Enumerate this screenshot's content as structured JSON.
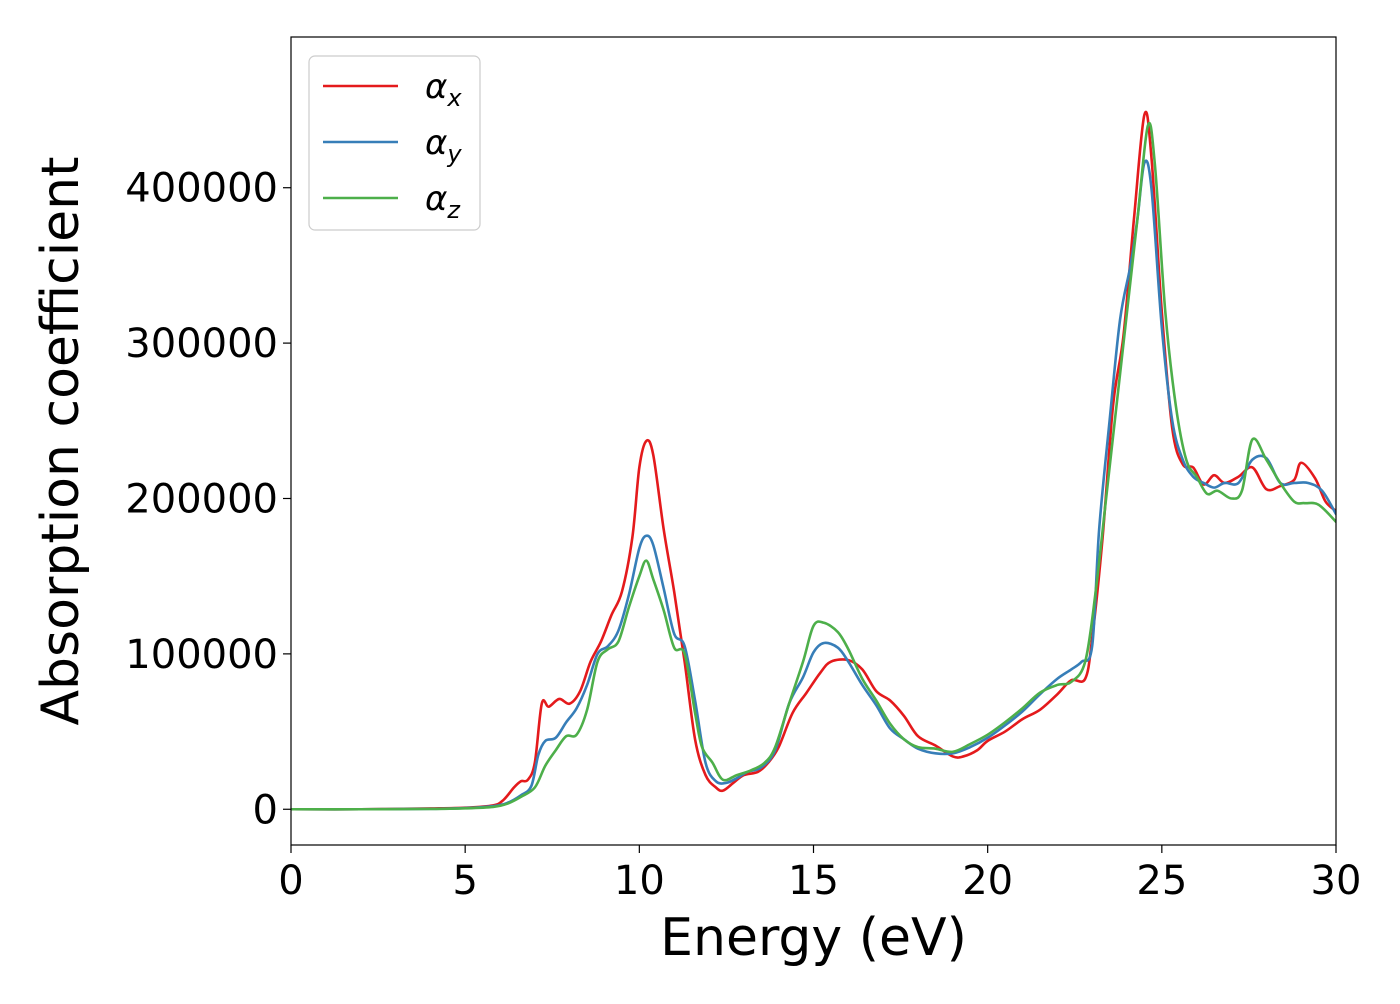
{
  "chart_data": {
    "type": "line",
    "xlabel": "Energy (eV)",
    "ylabel": "Absorption coefficient",
    "xlim": [
      0,
      30
    ],
    "ylim": [
      -23000,
      497000
    ],
    "xticks": [
      0,
      5,
      10,
      15,
      20,
      25,
      30
    ],
    "xtick_labels": [
      "0",
      "5",
      "10",
      "15",
      "20",
      "25",
      "30"
    ],
    "yticks": [
      0,
      100000,
      200000,
      300000,
      400000
    ],
    "ytick_labels": [
      "0",
      "100000",
      "200000",
      "300000",
      "400000"
    ],
    "grid": false,
    "legend_position": "top-left",
    "series": [
      {
        "name": "α",
        "subscript": "x",
        "color": "#e41a1c",
        "points": [
          [
            0,
            0
          ],
          [
            2,
            0
          ],
          [
            4,
            500
          ],
          [
            5,
            1000
          ],
          [
            5.8,
            2500
          ],
          [
            6.1,
            6000
          ],
          [
            6.4,
            14000
          ],
          [
            6.6,
            18000
          ],
          [
            6.8,
            19000
          ],
          [
            7.0,
            30000
          ],
          [
            7.2,
            68000
          ],
          [
            7.4,
            66000
          ],
          [
            7.7,
            71000
          ],
          [
            8.0,
            68000
          ],
          [
            8.3,
            76000
          ],
          [
            8.6,
            95000
          ],
          [
            8.9,
            108000
          ],
          [
            9.2,
            125000
          ],
          [
            9.5,
            140000
          ],
          [
            9.8,
            175000
          ],
          [
            10.0,
            220000
          ],
          [
            10.2,
            237000
          ],
          [
            10.4,
            228000
          ],
          [
            10.7,
            180000
          ],
          [
            11.0,
            140000
          ],
          [
            11.3,
            95000
          ],
          [
            11.6,
            45000
          ],
          [
            11.9,
            22000
          ],
          [
            12.2,
            14000
          ],
          [
            12.4,
            12000
          ],
          [
            12.7,
            17000
          ],
          [
            13.0,
            22000
          ],
          [
            13.4,
            24000
          ],
          [
            13.7,
            30000
          ],
          [
            14.0,
            40000
          ],
          [
            14.4,
            62000
          ],
          [
            14.8,
            75000
          ],
          [
            15.2,
            88000
          ],
          [
            15.5,
            95000
          ],
          [
            16.0,
            96000
          ],
          [
            16.4,
            90000
          ],
          [
            16.8,
            76000
          ],
          [
            17.2,
            70000
          ],
          [
            17.6,
            60000
          ],
          [
            18.0,
            47000
          ],
          [
            18.5,
            41000
          ],
          [
            19.0,
            34000
          ],
          [
            19.3,
            34000
          ],
          [
            19.7,
            38000
          ],
          [
            20.0,
            44000
          ],
          [
            20.5,
            50000
          ],
          [
            21.0,
            58000
          ],
          [
            21.5,
            64000
          ],
          [
            22.0,
            74000
          ],
          [
            22.4,
            83000
          ],
          [
            22.8,
            84000
          ],
          [
            23.0,
            110000
          ],
          [
            23.3,
            175000
          ],
          [
            23.6,
            260000
          ],
          [
            23.9,
            305000
          ],
          [
            24.2,
            380000
          ],
          [
            24.5,
            447000
          ],
          [
            24.7,
            420000
          ],
          [
            25.0,
            320000
          ],
          [
            25.3,
            245000
          ],
          [
            25.6,
            222000
          ],
          [
            25.9,
            220000
          ],
          [
            26.2,
            209000
          ],
          [
            26.5,
            215000
          ],
          [
            26.8,
            210000
          ],
          [
            27.2,
            214000
          ],
          [
            27.6,
            220000
          ],
          [
            28.0,
            206000
          ],
          [
            28.4,
            208000
          ],
          [
            28.8,
            212000
          ],
          [
            29.0,
            223000
          ],
          [
            29.4,
            213000
          ],
          [
            29.7,
            198000
          ],
          [
            30,
            192000
          ]
        ]
      },
      {
        "name": "α",
        "subscript": "y",
        "color": "#377eb8",
        "points": [
          [
            0,
            0
          ],
          [
            2,
            0
          ],
          [
            4,
            300
          ],
          [
            5,
            800
          ],
          [
            5.8,
            2000
          ],
          [
            6.2,
            4000
          ],
          [
            6.6,
            9000
          ],
          [
            6.9,
            15000
          ],
          [
            7.1,
            35000
          ],
          [
            7.3,
            44000
          ],
          [
            7.6,
            46000
          ],
          [
            7.9,
            56000
          ],
          [
            8.2,
            65000
          ],
          [
            8.5,
            80000
          ],
          [
            8.8,
            100000
          ],
          [
            9.1,
            105000
          ],
          [
            9.4,
            115000
          ],
          [
            9.7,
            138000
          ],
          [
            10.0,
            168000
          ],
          [
            10.2,
            176000
          ],
          [
            10.4,
            170000
          ],
          [
            10.7,
            142000
          ],
          [
            11.0,
            113000
          ],
          [
            11.3,
            105000
          ],
          [
            11.6,
            70000
          ],
          [
            11.9,
            30000
          ],
          [
            12.2,
            18000
          ],
          [
            12.5,
            17000
          ],
          [
            12.8,
            20000
          ],
          [
            13.1,
            24000
          ],
          [
            13.5,
            27000
          ],
          [
            13.9,
            38000
          ],
          [
            14.3,
            68000
          ],
          [
            14.7,
            85000
          ],
          [
            15.0,
            101000
          ],
          [
            15.3,
            107000
          ],
          [
            15.7,
            104000
          ],
          [
            16.0,
            95000
          ],
          [
            16.4,
            80000
          ],
          [
            16.8,
            67000
          ],
          [
            17.2,
            52000
          ],
          [
            17.6,
            45000
          ],
          [
            18.0,
            39000
          ],
          [
            18.5,
            36000
          ],
          [
            19.0,
            36000
          ],
          [
            19.5,
            40000
          ],
          [
            20.0,
            46000
          ],
          [
            20.5,
            54000
          ],
          [
            21.0,
            63000
          ],
          [
            21.5,
            74000
          ],
          [
            22.0,
            84000
          ],
          [
            22.4,
            90000
          ],
          [
            22.7,
            95000
          ],
          [
            23.0,
            105000
          ],
          [
            23.2,
            180000
          ],
          [
            23.5,
            250000
          ],
          [
            23.8,
            315000
          ],
          [
            24.1,
            350000
          ],
          [
            24.3,
            380000
          ],
          [
            24.5,
            416000
          ],
          [
            24.7,
            400000
          ],
          [
            25.0,
            310000
          ],
          [
            25.3,
            250000
          ],
          [
            25.6,
            225000
          ],
          [
            25.9,
            214000
          ],
          [
            26.2,
            210000
          ],
          [
            26.5,
            207000
          ],
          [
            26.8,
            210000
          ],
          [
            27.2,
            210000
          ],
          [
            27.6,
            225000
          ],
          [
            28.0,
            226000
          ],
          [
            28.4,
            210000
          ],
          [
            28.8,
            210000
          ],
          [
            29.2,
            210000
          ],
          [
            29.6,
            205000
          ],
          [
            30,
            190000
          ]
        ]
      },
      {
        "name": "α",
        "subscript": "z",
        "color": "#4daf4a",
        "points": [
          [
            0,
            0
          ],
          [
            2,
            0
          ],
          [
            4,
            200
          ],
          [
            5,
            600
          ],
          [
            5.8,
            1500
          ],
          [
            6.2,
            3500
          ],
          [
            6.6,
            8000
          ],
          [
            7.0,
            14000
          ],
          [
            7.3,
            28000
          ],
          [
            7.6,
            38000
          ],
          [
            7.9,
            47000
          ],
          [
            8.2,
            48000
          ],
          [
            8.5,
            64000
          ],
          [
            8.8,
            95000
          ],
          [
            9.1,
            103000
          ],
          [
            9.4,
            108000
          ],
          [
            9.7,
            130000
          ],
          [
            10.0,
            150000
          ],
          [
            10.2,
            160000
          ],
          [
            10.4,
            148000
          ],
          [
            10.7,
            128000
          ],
          [
            11.0,
            104000
          ],
          [
            11.3,
            100000
          ],
          [
            11.6,
            62000
          ],
          [
            11.8,
            40000
          ],
          [
            12.1,
            30000
          ],
          [
            12.4,
            19000
          ],
          [
            12.8,
            22000
          ],
          [
            13.2,
            25000
          ],
          [
            13.6,
            30000
          ],
          [
            13.9,
            40000
          ],
          [
            14.3,
            68000
          ],
          [
            14.7,
            95000
          ],
          [
            15.0,
            118000
          ],
          [
            15.3,
            120000
          ],
          [
            15.7,
            114000
          ],
          [
            16.0,
            103000
          ],
          [
            16.4,
            84000
          ],
          [
            16.8,
            70000
          ],
          [
            17.2,
            55000
          ],
          [
            17.6,
            45000
          ],
          [
            18.0,
            40000
          ],
          [
            18.5,
            39000
          ],
          [
            19.0,
            37000
          ],
          [
            19.5,
            42000
          ],
          [
            20.0,
            48000
          ],
          [
            20.5,
            56000
          ],
          [
            21.0,
            65000
          ],
          [
            21.5,
            75000
          ],
          [
            22.0,
            80000
          ],
          [
            22.4,
            82000
          ],
          [
            22.8,
            95000
          ],
          [
            23.1,
            140000
          ],
          [
            23.4,
            200000
          ],
          [
            23.7,
            260000
          ],
          [
            24.0,
            320000
          ],
          [
            24.3,
            380000
          ],
          [
            24.6,
            440000
          ],
          [
            24.8,
            415000
          ],
          [
            25.1,
            320000
          ],
          [
            25.4,
            260000
          ],
          [
            25.7,
            225000
          ],
          [
            26.0,
            214000
          ],
          [
            26.3,
            203000
          ],
          [
            26.6,
            205000
          ],
          [
            27.0,
            200000
          ],
          [
            27.3,
            205000
          ],
          [
            27.6,
            238000
          ],
          [
            28.0,
            225000
          ],
          [
            28.4,
            210000
          ],
          [
            28.8,
            198000
          ],
          [
            29.1,
            197000
          ],
          [
            29.5,
            196000
          ],
          [
            30,
            185000
          ]
        ]
      }
    ]
  }
}
